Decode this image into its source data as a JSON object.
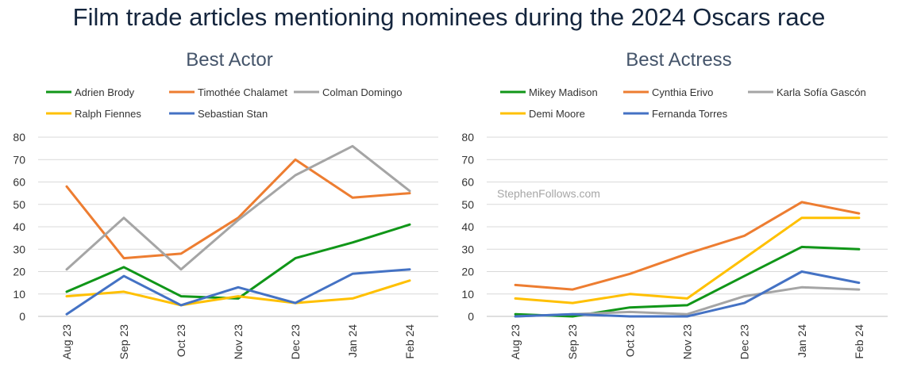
{
  "title": "Film trade articles mentioning nominees during the 2024 Oscars race",
  "watermark": "StephenFollows.com",
  "chart_data": [
    {
      "type": "line",
      "title": "Best Actor",
      "categories": [
        "Aug 23",
        "Sep 23",
        "Oct 23",
        "Nov 23",
        "Dec 23",
        "Jan 24",
        "Feb 24"
      ],
      "ylim": [
        0,
        80
      ],
      "yticks": [
        "0",
        "10",
        "20",
        "30",
        "40",
        "50",
        "60",
        "70",
        "80"
      ],
      "grid": true,
      "legend": "top",
      "series": [
        {
          "name": "Adrien Brody",
          "color": "#109618",
          "values": [
            11,
            22,
            9,
            8,
            26,
            33,
            41
          ]
        },
        {
          "name": "Timothée Chalamet",
          "color": "#ed7d31",
          "values": [
            58,
            26,
            28,
            44,
            70,
            53,
            55
          ]
        },
        {
          "name": "Colman Domingo",
          "color": "#a5a5a5",
          "values": [
            21,
            44,
            21,
            43,
            63,
            76,
            56
          ]
        },
        {
          "name": "Ralph Fiennes",
          "color": "#ffc000",
          "values": [
            9,
            11,
            5,
            9,
            6,
            8,
            16
          ]
        },
        {
          "name": "Sebastian Stan",
          "color": "#4472c4",
          "values": [
            1,
            18,
            5,
            13,
            6,
            19,
            21
          ]
        }
      ]
    },
    {
      "type": "line",
      "title": "Best Actress",
      "categories": [
        "Aug 23",
        "Sep 23",
        "Oct 23",
        "Nov 23",
        "Dec 23",
        "Jan 24",
        "Feb 24"
      ],
      "ylim": [
        0,
        80
      ],
      "yticks": [
        "0",
        "10",
        "20",
        "30",
        "40",
        "50",
        "60",
        "70",
        "80"
      ],
      "grid": true,
      "legend": "top",
      "series": [
        {
          "name": "Mikey Madison",
          "color": "#109618",
          "values": [
            1,
            0,
            4,
            5,
            18,
            31,
            30
          ]
        },
        {
          "name": "Cynthia Erivo",
          "color": "#ed7d31",
          "values": [
            14,
            12,
            19,
            28,
            36,
            51,
            46
          ]
        },
        {
          "name": "Karla Sofía Gascón",
          "color": "#a5a5a5",
          "values": [
            0,
            1,
            2,
            1,
            9,
            13,
            12
          ]
        },
        {
          "name": "Demi Moore",
          "color": "#ffc000",
          "values": [
            8,
            6,
            10,
            8,
            26,
            44,
            44
          ]
        },
        {
          "name": "Fernanda Torres",
          "color": "#4472c4",
          "values": [
            0,
            1,
            0,
            0,
            6,
            20,
            15
          ]
        }
      ]
    }
  ]
}
